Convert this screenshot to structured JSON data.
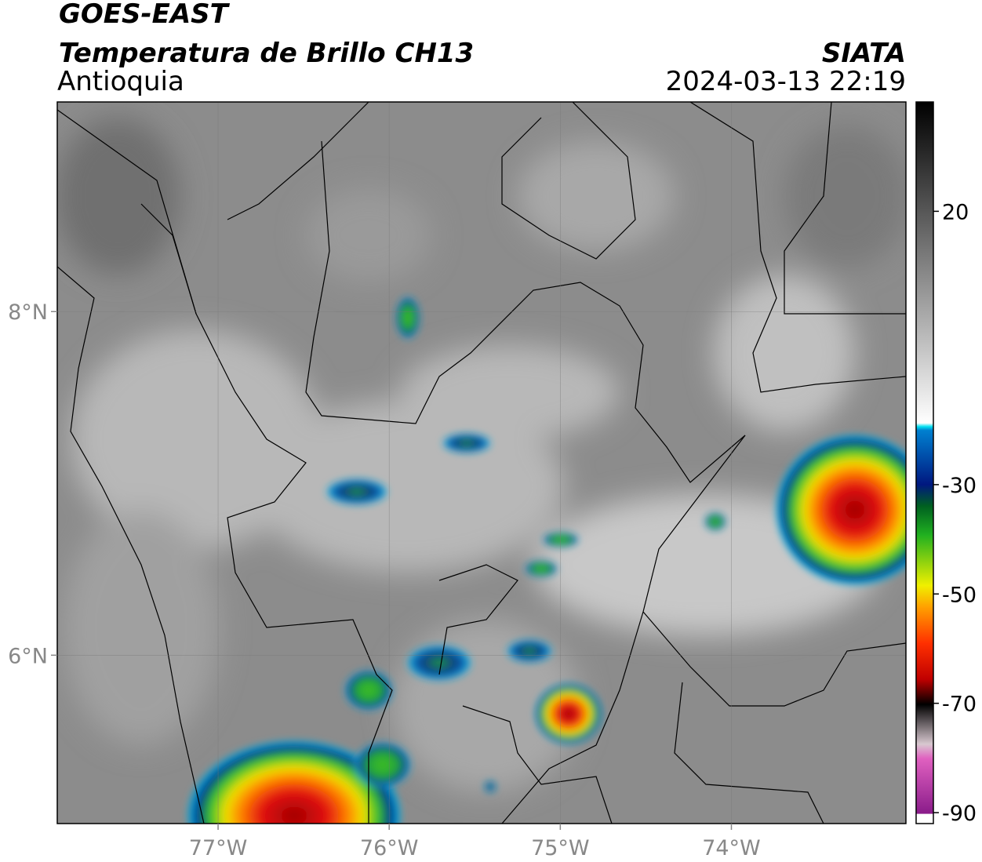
{
  "header": {
    "title": "GOES-EAST",
    "subtitle": "Temperatura de Brillo CH13",
    "region": "Antioquia",
    "source": "SIATA",
    "timestamp": "2024-03-13 22:19"
  },
  "map": {
    "lonlim": [
      -77.94,
      -72.98
    ],
    "latlim": [
      5.02,
      9.22
    ],
    "lonticks": [
      {
        "value": -77,
        "label": "77°W"
      },
      {
        "value": -76,
        "label": "76°W"
      },
      {
        "value": -75,
        "label": "75°W"
      },
      {
        "value": -74,
        "label": "74°W"
      }
    ],
    "latticks": [
      {
        "value": 8,
        "label": "8°N"
      },
      {
        "value": 6,
        "label": "6°N"
      }
    ],
    "grid": true
  },
  "colorbar": {
    "lim": [
      -92,
      40
    ],
    "ticks": [
      20,
      -30,
      -50,
      -70,
      -90
    ]
  }
}
